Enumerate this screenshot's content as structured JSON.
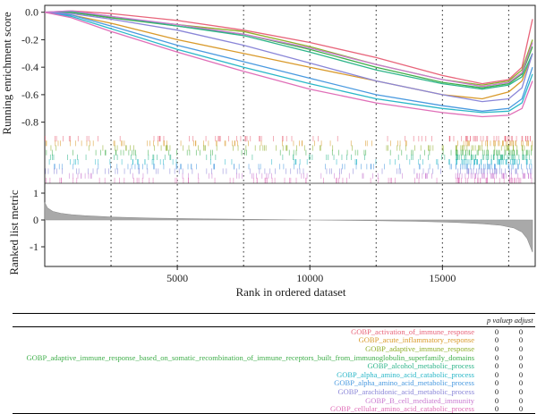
{
  "chart_data": {
    "type": "line",
    "xlabel": "Rank in ordered dataset",
    "ylabel_top": "Running enrichment score",
    "ylabel_bottom": "Ranked list metric",
    "x_ticks": [
      5000,
      10000,
      15000
    ],
    "xlim": [
      0,
      18500
    ],
    "top_ylim": [
      -0.9,
      0.05
    ],
    "top_yticks": [
      "0.0",
      "-0.2",
      "-0.4",
      "-0.6",
      "-0.8"
    ],
    "top_ytick_values": [
      0.0,
      -0.2,
      -0.4,
      -0.6,
      -0.8
    ],
    "bottom_ytick_labels": [
      "1",
      "0",
      "-1"
    ],
    "bottom_ytick_values": [
      1,
      0,
      -1
    ],
    "vlines": [
      2500,
      5000,
      7500,
      10000,
      12500,
      15000,
      17500
    ],
    "series": [
      {
        "name": "GOBP_activation_of_immune_response",
        "color": "#e8647a",
        "x": [
          0,
          1000,
          2500,
          5000,
          7500,
          10000,
          12500,
          15000,
          16500,
          17500,
          18000,
          18400
        ],
        "y": [
          0,
          0.01,
          -0.01,
          -0.06,
          -0.13,
          -0.22,
          -0.33,
          -0.46,
          -0.52,
          -0.49,
          -0.4,
          -0.05
        ]
      },
      {
        "name": "GOBP_acute_inflammatory_response",
        "color": "#d99a2b",
        "x": [
          0,
          1000,
          2500,
          5000,
          7500,
          10000,
          12500,
          15000,
          16500,
          17500,
          18000,
          18400
        ],
        "y": [
          0,
          -0.02,
          -0.08,
          -0.2,
          -0.3,
          -0.4,
          -0.5,
          -0.6,
          -0.63,
          -0.58,
          -0.5,
          -0.3
        ]
      },
      {
        "name": "GOBP_adaptive_immune_response",
        "color": "#8fae2a",
        "x": [
          0,
          1000,
          2500,
          5000,
          7500,
          10000,
          12500,
          15000,
          16500,
          17500,
          18000,
          18400
        ],
        "y": [
          0,
          0.0,
          -0.04,
          -0.09,
          -0.14,
          -0.25,
          -0.38,
          -0.49,
          -0.53,
          -0.5,
          -0.42,
          -0.2
        ]
      },
      {
        "name": "GOBP_adaptive_immune_response_based_on_somatic_recombination_of_immune_receptors_built_from_immunoglobulin_superfamily_domains",
        "color": "#3fae4a",
        "x": [
          0,
          1000,
          2500,
          5000,
          7500,
          10000,
          12500,
          15000,
          16500,
          17500,
          18000,
          18400
        ],
        "y": [
          0,
          0.0,
          -0.04,
          -0.1,
          -0.16,
          -0.27,
          -0.4,
          -0.51,
          -0.55,
          -0.52,
          -0.45,
          -0.25
        ]
      },
      {
        "name": "GOBP_alcohol_metabolic_process",
        "color": "#2fb58a",
        "x": [
          0,
          1000,
          2500,
          5000,
          7500,
          10000,
          12500,
          15000,
          16500,
          17500,
          18000,
          18400
        ],
        "y": [
          0,
          0.005,
          -0.03,
          -0.1,
          -0.17,
          -0.29,
          -0.42,
          -0.52,
          -0.56,
          -0.53,
          -0.47,
          -0.3
        ]
      },
      {
        "name": "GOBP_alpha_amino_acid_catabolic_process",
        "color": "#2ab7c8",
        "x": [
          0,
          1000,
          2500,
          5000,
          7500,
          10000,
          12500,
          15000,
          16500,
          17500,
          18000,
          18400
        ],
        "y": [
          0,
          -0.03,
          -0.12,
          -0.27,
          -0.4,
          -0.52,
          -0.63,
          -0.7,
          -0.73,
          -0.72,
          -0.66,
          -0.45
        ]
      },
      {
        "name": "GOBP_alpha_amino_acid_metabolic_process",
        "color": "#4a9ae0",
        "x": [
          0,
          1000,
          2500,
          5000,
          7500,
          10000,
          12500,
          15000,
          16500,
          17500,
          18000,
          18400
        ],
        "y": [
          0,
          -0.02,
          -0.1,
          -0.24,
          -0.36,
          -0.48,
          -0.6,
          -0.68,
          -0.72,
          -0.7,
          -0.63,
          -0.4
        ]
      },
      {
        "name": "GOBP_arachidonic_acid_metabolic_process",
        "color": "#8a86d8",
        "x": [
          0,
          1000,
          2500,
          5000,
          7500,
          10000,
          12500,
          15000,
          16500,
          17500,
          18000,
          18400
        ],
        "y": [
          0,
          -0.01,
          -0.05,
          -0.13,
          -0.24,
          -0.37,
          -0.5,
          -0.6,
          -0.65,
          -0.63,
          -0.55,
          -0.3
        ]
      },
      {
        "name": "GOBP_B_cell_mediated_immunity",
        "color": "#c97ad0",
        "x": [
          0,
          1000,
          2500,
          5000,
          7500,
          10000,
          12500,
          15000,
          16500,
          17500,
          18000,
          18400
        ],
        "y": [
          0,
          0.01,
          -0.03,
          -0.09,
          -0.16,
          -0.26,
          -0.38,
          -0.49,
          -0.54,
          -0.51,
          -0.44,
          -0.22
        ]
      },
      {
        "name": "GOBP_cellular_amino_acid_catabolic_process",
        "color": "#e06fb8",
        "x": [
          0,
          1000,
          2500,
          5000,
          7500,
          10000,
          12500,
          15000,
          16500,
          17500,
          18000,
          18400
        ],
        "y": [
          0,
          -0.04,
          -0.14,
          -0.29,
          -0.43,
          -0.56,
          -0.66,
          -0.73,
          -0.76,
          -0.75,
          -0.7,
          -0.5
        ]
      }
    ],
    "metric": {
      "x": [
        0,
        100,
        300,
        600,
        1000,
        1500,
        2500,
        4000,
        6000,
        8000,
        10000,
        12000,
        14000,
        15500,
        16500,
        17200,
        17700,
        18000,
        18200,
        18400
      ],
      "y": [
        0.65,
        0.45,
        0.32,
        0.25,
        0.2,
        0.16,
        0.11,
        0.07,
        0.04,
        0.02,
        0.0,
        -0.02,
        -0.05,
        -0.09,
        -0.14,
        -0.2,
        -0.3,
        -0.45,
        -0.7,
        -1.2
      ]
    },
    "table": {
      "col_p": "p value",
      "col_padj": "p adjust",
      "rows": [
        {
          "name": "GOBP_activation_of_immune_response",
          "p": "0",
          "padj": "0",
          "color": "#e8647a"
        },
        {
          "name": "GOBP_acute_inflammatory_response",
          "p": "0",
          "padj": "0",
          "color": "#d99a2b"
        },
        {
          "name": "GOBP_adaptive_immune_response",
          "p": "0",
          "padj": "0",
          "color": "#8fae2a"
        },
        {
          "name": "GOBP_adaptive_immune_response_based_on_somatic_recombination_of_immune_receptors_built_from_immunoglobulin_superfamily_domains",
          "p": "0",
          "padj": "0",
          "color": "#3fae4a"
        },
        {
          "name": "GOBP_alcohol_metabolic_process",
          "p": "0",
          "padj": "0",
          "color": "#2fb58a"
        },
        {
          "name": "GOBP_alpha_amino_acid_catabolic_process",
          "p": "0",
          "padj": "0",
          "color": "#2ab7c8"
        },
        {
          "name": "GOBP_alpha_amino_acid_metabolic_process",
          "p": "0",
          "padj": "0",
          "color": "#4a9ae0"
        },
        {
          "name": "GOBP_arachidonic_acid_metabolic_process",
          "p": "0",
          "padj": "0",
          "color": "#8a86d8"
        },
        {
          "name": "GOBP_B_cell_mediated_immunity",
          "p": "0",
          "padj": "0",
          "color": "#c97ad0"
        },
        {
          "name": "GOBP_cellular_amino_acid_catabolic_process",
          "p": "0",
          "padj": "0",
          "color": "#e06fb8"
        }
      ]
    }
  }
}
